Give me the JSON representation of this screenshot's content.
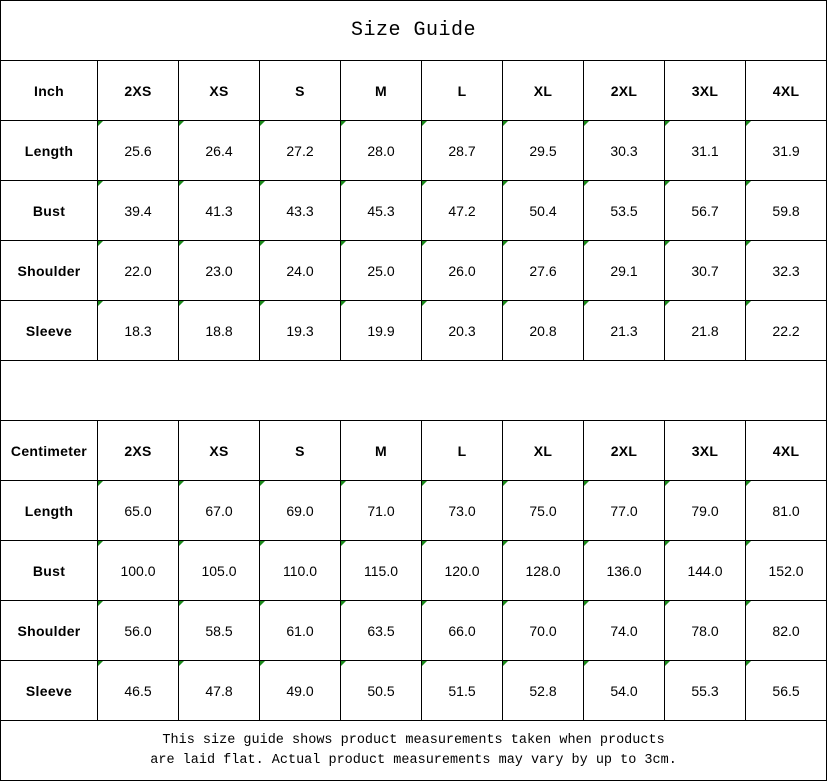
{
  "title": "Size Guide",
  "sizes": [
    "2XS",
    "XS",
    "S",
    "M",
    "L",
    "XL",
    "2XL",
    "3XL",
    "4XL"
  ],
  "tables": [
    {
      "unit": "Inch",
      "rows": [
        {
          "label": "Length",
          "values": [
            "25.6",
            "26.4",
            "27.2",
            "28.0",
            "28.7",
            "29.5",
            "30.3",
            "31.1",
            "31.9"
          ]
        },
        {
          "label": "Bust",
          "values": [
            "39.4",
            "41.3",
            "43.3",
            "45.3",
            "47.2",
            "50.4",
            "53.5",
            "56.7",
            "59.8"
          ]
        },
        {
          "label": "Shoulder",
          "values": [
            "22.0",
            "23.0",
            "24.0",
            "25.0",
            "26.0",
            "27.6",
            "29.1",
            "30.7",
            "32.3"
          ]
        },
        {
          "label": "Sleeve",
          "values": [
            "18.3",
            "18.8",
            "19.3",
            "19.9",
            "20.3",
            "20.8",
            "21.3",
            "21.8",
            "22.2"
          ]
        }
      ]
    },
    {
      "unit": "Centimeter",
      "rows": [
        {
          "label": "Length",
          "values": [
            "65.0",
            "67.0",
            "69.0",
            "71.0",
            "73.0",
            "75.0",
            "77.0",
            "79.0",
            "81.0"
          ]
        },
        {
          "label": "Bust",
          "values": [
            "100.0",
            "105.0",
            "110.0",
            "115.0",
            "120.0",
            "128.0",
            "136.0",
            "144.0",
            "152.0"
          ]
        },
        {
          "label": "Shoulder",
          "values": [
            "56.0",
            "58.5",
            "61.0",
            "63.5",
            "66.0",
            "70.0",
            "74.0",
            "78.0",
            "82.0"
          ]
        },
        {
          "label": "Sleeve",
          "values": [
            "46.5",
            "47.8",
            "49.0",
            "50.5",
            "51.5",
            "52.8",
            "54.0",
            "55.3",
            "56.5"
          ]
        }
      ]
    }
  ],
  "note_line1": "This size guide shows product measurements taken when products",
  "note_line2": "are laid flat. Actual product measurements may vary by up to 3cm.",
  "colors": {
    "text_indicator": "#1a8a1a",
    "border": "#000000"
  }
}
